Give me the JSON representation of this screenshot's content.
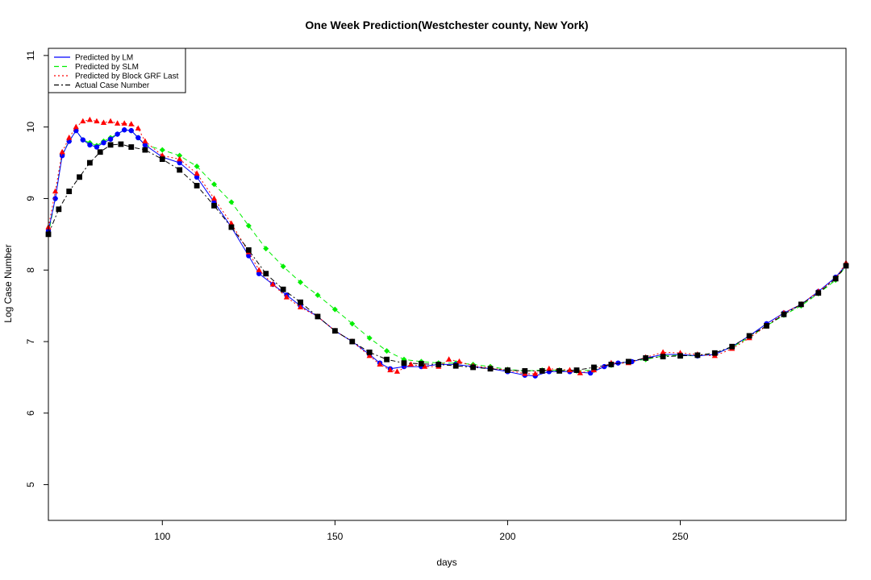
{
  "chart_data": {
    "type": "scatter",
    "title": "One Week Prediction(Westchester county, New York)",
    "xlabel": "days",
    "ylabel": "Log Case Number",
    "xlim": [
      67,
      298
    ],
    "ylim": [
      4.5,
      11.1
    ],
    "xticks": [
      "100",
      "150",
      "200",
      "250"
    ],
    "yticks": [
      "5",
      "6",
      "7",
      "8",
      "9",
      "10",
      "11"
    ],
    "legend_position": "top-left",
    "series": [
      {
        "name": "Predicted by LM",
        "color": "#0000ff",
        "marker": "circle",
        "line_style": "solid",
        "points": [
          [
            67,
            8.55
          ],
          [
            69,
            9.0
          ],
          [
            71,
            9.6
          ],
          [
            73,
            9.8
          ],
          [
            75,
            9.95
          ],
          [
            77,
            9.82
          ],
          [
            79,
            9.75
          ],
          [
            81,
            9.72
          ],
          [
            83,
            9.78
          ],
          [
            85,
            9.83
          ],
          [
            87,
            9.9
          ],
          [
            89,
            9.96
          ],
          [
            91,
            9.95
          ],
          [
            93,
            9.85
          ],
          [
            95,
            9.75
          ],
          [
            100,
            9.58
          ],
          [
            105,
            9.5
          ],
          [
            110,
            9.3
          ],
          [
            115,
            8.95
          ],
          [
            120,
            8.6
          ],
          [
            125,
            8.2
          ],
          [
            128,
            7.95
          ],
          [
            132,
            7.8
          ],
          [
            136,
            7.65
          ],
          [
            140,
            7.5
          ],
          [
            145,
            7.35
          ],
          [
            150,
            7.15
          ],
          [
            155,
            7.0
          ],
          [
            160,
            6.82
          ],
          [
            163,
            6.7
          ],
          [
            166,
            6.62
          ],
          [
            170,
            6.65
          ],
          [
            175,
            6.65
          ],
          [
            180,
            6.68
          ],
          [
            185,
            6.68
          ],
          [
            190,
            6.65
          ],
          [
            195,
            6.62
          ],
          [
            200,
            6.58
          ],
          [
            205,
            6.53
          ],
          [
            208,
            6.52
          ],
          [
            212,
            6.58
          ],
          [
            218,
            6.58
          ],
          [
            224,
            6.56
          ],
          [
            228,
            6.65
          ],
          [
            232,
            6.7
          ],
          [
            236,
            6.72
          ],
          [
            240,
            6.77
          ],
          [
            245,
            6.82
          ],
          [
            250,
            6.82
          ],
          [
            255,
            6.8
          ],
          [
            260,
            6.82
          ],
          [
            265,
            6.93
          ],
          [
            270,
            7.08
          ],
          [
            275,
            7.25
          ],
          [
            280,
            7.4
          ],
          [
            285,
            7.52
          ],
          [
            290,
            7.7
          ],
          [
            295,
            7.9
          ],
          [
            298,
            8.07
          ]
        ]
      },
      {
        "name": "Predicted by SLM",
        "color": "#00ee00",
        "marker": "diamond",
        "line_style": "dashed",
        "points": [
          [
            67,
            8.5
          ],
          [
            69,
            9.0
          ],
          [
            71,
            9.62
          ],
          [
            73,
            9.8
          ],
          [
            75,
            9.95
          ],
          [
            77,
            9.82
          ],
          [
            79,
            9.78
          ],
          [
            81,
            9.74
          ],
          [
            83,
            9.8
          ],
          [
            85,
            9.85
          ],
          [
            87,
            9.9
          ],
          [
            89,
            9.96
          ],
          [
            91,
            9.95
          ],
          [
            93,
            9.85
          ],
          [
            95,
            9.75
          ],
          [
            100,
            9.68
          ],
          [
            105,
            9.6
          ],
          [
            110,
            9.45
          ],
          [
            115,
            9.2
          ],
          [
            120,
            8.95
          ],
          [
            125,
            8.62
          ],
          [
            130,
            8.3
          ],
          [
            135,
            8.05
          ],
          [
            140,
            7.83
          ],
          [
            145,
            7.65
          ],
          [
            150,
            7.45
          ],
          [
            155,
            7.25
          ],
          [
            160,
            7.05
          ],
          [
            165,
            6.87
          ],
          [
            170,
            6.75
          ],
          [
            175,
            6.72
          ],
          [
            180,
            6.7
          ],
          [
            185,
            6.7
          ],
          [
            190,
            6.68
          ],
          [
            195,
            6.65
          ],
          [
            200,
            6.61
          ],
          [
            205,
            6.59
          ],
          [
            210,
            6.6
          ],
          [
            215,
            6.6
          ],
          [
            220,
            6.59
          ],
          [
            225,
            6.6
          ],
          [
            230,
            6.67
          ],
          [
            235,
            6.72
          ],
          [
            240,
            6.75
          ],
          [
            245,
            6.8
          ],
          [
            250,
            6.81
          ],
          [
            255,
            6.8
          ],
          [
            260,
            6.83
          ],
          [
            265,
            6.92
          ],
          [
            270,
            7.06
          ],
          [
            275,
            7.22
          ],
          [
            280,
            7.37
          ],
          [
            285,
            7.5
          ],
          [
            290,
            7.67
          ],
          [
            295,
            7.86
          ],
          [
            298,
            8.06
          ]
        ]
      },
      {
        "name": "Predicted by Block GRF Last",
        "color": "#ff0000",
        "marker": "triangle",
        "line_style": "dotted",
        "points": [
          [
            67,
            8.6
          ],
          [
            69,
            9.1
          ],
          [
            71,
            9.65
          ],
          [
            73,
            9.85
          ],
          [
            75,
            10.0
          ],
          [
            77,
            10.08
          ],
          [
            79,
            10.1
          ],
          [
            81,
            10.08
          ],
          [
            83,
            10.06
          ],
          [
            85,
            10.08
          ],
          [
            87,
            10.05
          ],
          [
            89,
            10.05
          ],
          [
            91,
            10.04
          ],
          [
            93,
            9.98
          ],
          [
            95,
            9.8
          ],
          [
            100,
            9.6
          ],
          [
            105,
            9.55
          ],
          [
            110,
            9.35
          ],
          [
            115,
            9.0
          ],
          [
            120,
            8.65
          ],
          [
            125,
            8.25
          ],
          [
            128,
            8.0
          ],
          [
            132,
            7.8
          ],
          [
            136,
            7.62
          ],
          [
            140,
            7.48
          ],
          [
            145,
            7.35
          ],
          [
            150,
            7.15
          ],
          [
            155,
            7.0
          ],
          [
            160,
            6.8
          ],
          [
            163,
            6.68
          ],
          [
            166,
            6.6
          ],
          [
            168,
            6.58
          ],
          [
            172,
            6.68
          ],
          [
            176,
            6.65
          ],
          [
            180,
            6.65
          ],
          [
            183,
            6.75
          ],
          [
            186,
            6.72
          ],
          [
            190,
            6.66
          ],
          [
            195,
            6.63
          ],
          [
            200,
            6.6
          ],
          [
            205,
            6.55
          ],
          [
            208,
            6.55
          ],
          [
            212,
            6.62
          ],
          [
            218,
            6.6
          ],
          [
            221,
            6.56
          ],
          [
            225,
            6.6
          ],
          [
            230,
            6.7
          ],
          [
            235,
            6.7
          ],
          [
            240,
            6.78
          ],
          [
            245,
            6.85
          ],
          [
            250,
            6.84
          ],
          [
            255,
            6.82
          ],
          [
            260,
            6.8
          ],
          [
            265,
            6.9
          ],
          [
            270,
            7.05
          ],
          [
            275,
            7.22
          ],
          [
            280,
            7.4
          ],
          [
            285,
            7.52
          ],
          [
            290,
            7.7
          ],
          [
            295,
            7.88
          ],
          [
            298,
            8.1
          ]
        ]
      },
      {
        "name": "Actual Case Number",
        "color": "#000000",
        "marker": "square",
        "line_style": "dashdot",
        "points": [
          [
            67,
            8.5
          ],
          [
            70,
            8.85
          ],
          [
            73,
            9.1
          ],
          [
            76,
            9.3
          ],
          [
            79,
            9.5
          ],
          [
            82,
            9.65
          ],
          [
            85,
            9.75
          ],
          [
            88,
            9.76
          ],
          [
            91,
            9.72
          ],
          [
            95,
            9.68
          ],
          [
            100,
            9.55
          ],
          [
            105,
            9.4
          ],
          [
            110,
            9.18
          ],
          [
            115,
            8.9
          ],
          [
            120,
            8.6
          ],
          [
            125,
            8.28
          ],
          [
            130,
            7.95
          ],
          [
            135,
            7.73
          ],
          [
            140,
            7.55
          ],
          [
            145,
            7.35
          ],
          [
            150,
            7.15
          ],
          [
            155,
            7.0
          ],
          [
            160,
            6.85
          ],
          [
            165,
            6.75
          ],
          [
            170,
            6.7
          ],
          [
            175,
            6.69
          ],
          [
            180,
            6.68
          ],
          [
            185,
            6.66
          ],
          [
            190,
            6.64
          ],
          [
            195,
            6.62
          ],
          [
            200,
            6.6
          ],
          [
            205,
            6.59
          ],
          [
            210,
            6.59
          ],
          [
            215,
            6.59
          ],
          [
            220,
            6.6
          ],
          [
            225,
            6.64
          ],
          [
            230,
            6.68
          ],
          [
            235,
            6.72
          ],
          [
            240,
            6.77
          ],
          [
            245,
            6.79
          ],
          [
            250,
            6.8
          ],
          [
            255,
            6.81
          ],
          [
            260,
            6.84
          ],
          [
            265,
            6.93
          ],
          [
            270,
            7.08
          ],
          [
            275,
            7.22
          ],
          [
            280,
            7.38
          ],
          [
            285,
            7.52
          ],
          [
            290,
            7.68
          ],
          [
            295,
            7.88
          ],
          [
            298,
            8.06
          ]
        ]
      }
    ]
  }
}
